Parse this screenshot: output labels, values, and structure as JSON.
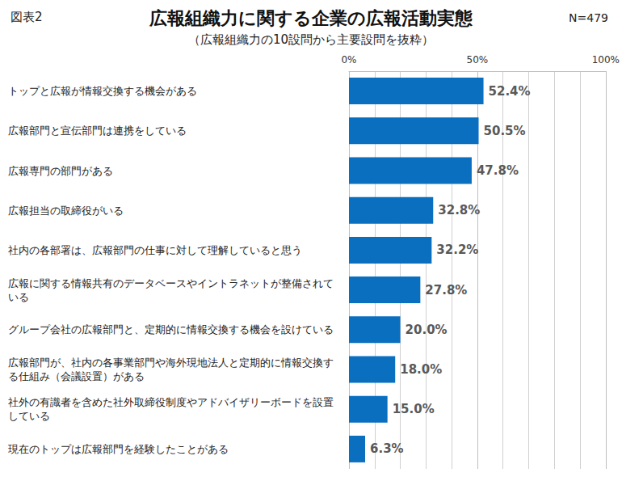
{
  "chart_data": {
    "type": "bar",
    "orientation": "horizontal",
    "title": "広報組織力に関する企業の広報活動実態",
    "subtitle": "（広報組織力の10設問から主要設問を抜粋）",
    "annotations": [
      "図表2",
      "N=479"
    ],
    "categories": [
      "トップと広報が情報交換する機会がある",
      "広報部門と宣伝部門は連携をしている",
      "広報専門の部門がある",
      "広報担当の取締役がいる",
      "社内の各部署は、広報部門の仕事に対して理解していると思う",
      "広報に関する情報共有のデータベースやイントラネットが整備されている",
      "グループ会社の広報部門と、定期的に情報交換する機会を設けている",
      "広報部門が、社内の各事業部門や海外現地法人と定期的に情報交換する仕組み（会議設置）がある",
      "社外の有識者を含めた社外取締役制度やアドバイザリーボードを設置している",
      "現在のトップは広報部門を経験したことがある"
    ],
    "values": [
      52.4,
      50.5,
      47.8,
      32.8,
      32.2,
      27.8,
      20.0,
      18.0,
      15.0,
      6.3
    ],
    "value_labels": [
      "52.4%",
      "50.5%",
      "47.8%",
      "32.8%",
      "32.2%",
      "27.8%",
      "20.0%",
      "18.0%",
      "15.0%",
      "6.3%"
    ],
    "data_labels": true,
    "color": "#0b6fc0",
    "xlim": [
      0,
      100
    ],
    "xticks": [
      {
        "value": 0,
        "label": "0%"
      },
      {
        "value": 50,
        "label": "50%"
      },
      {
        "value": 100,
        "label": "100%"
      }
    ],
    "grid": true
  }
}
